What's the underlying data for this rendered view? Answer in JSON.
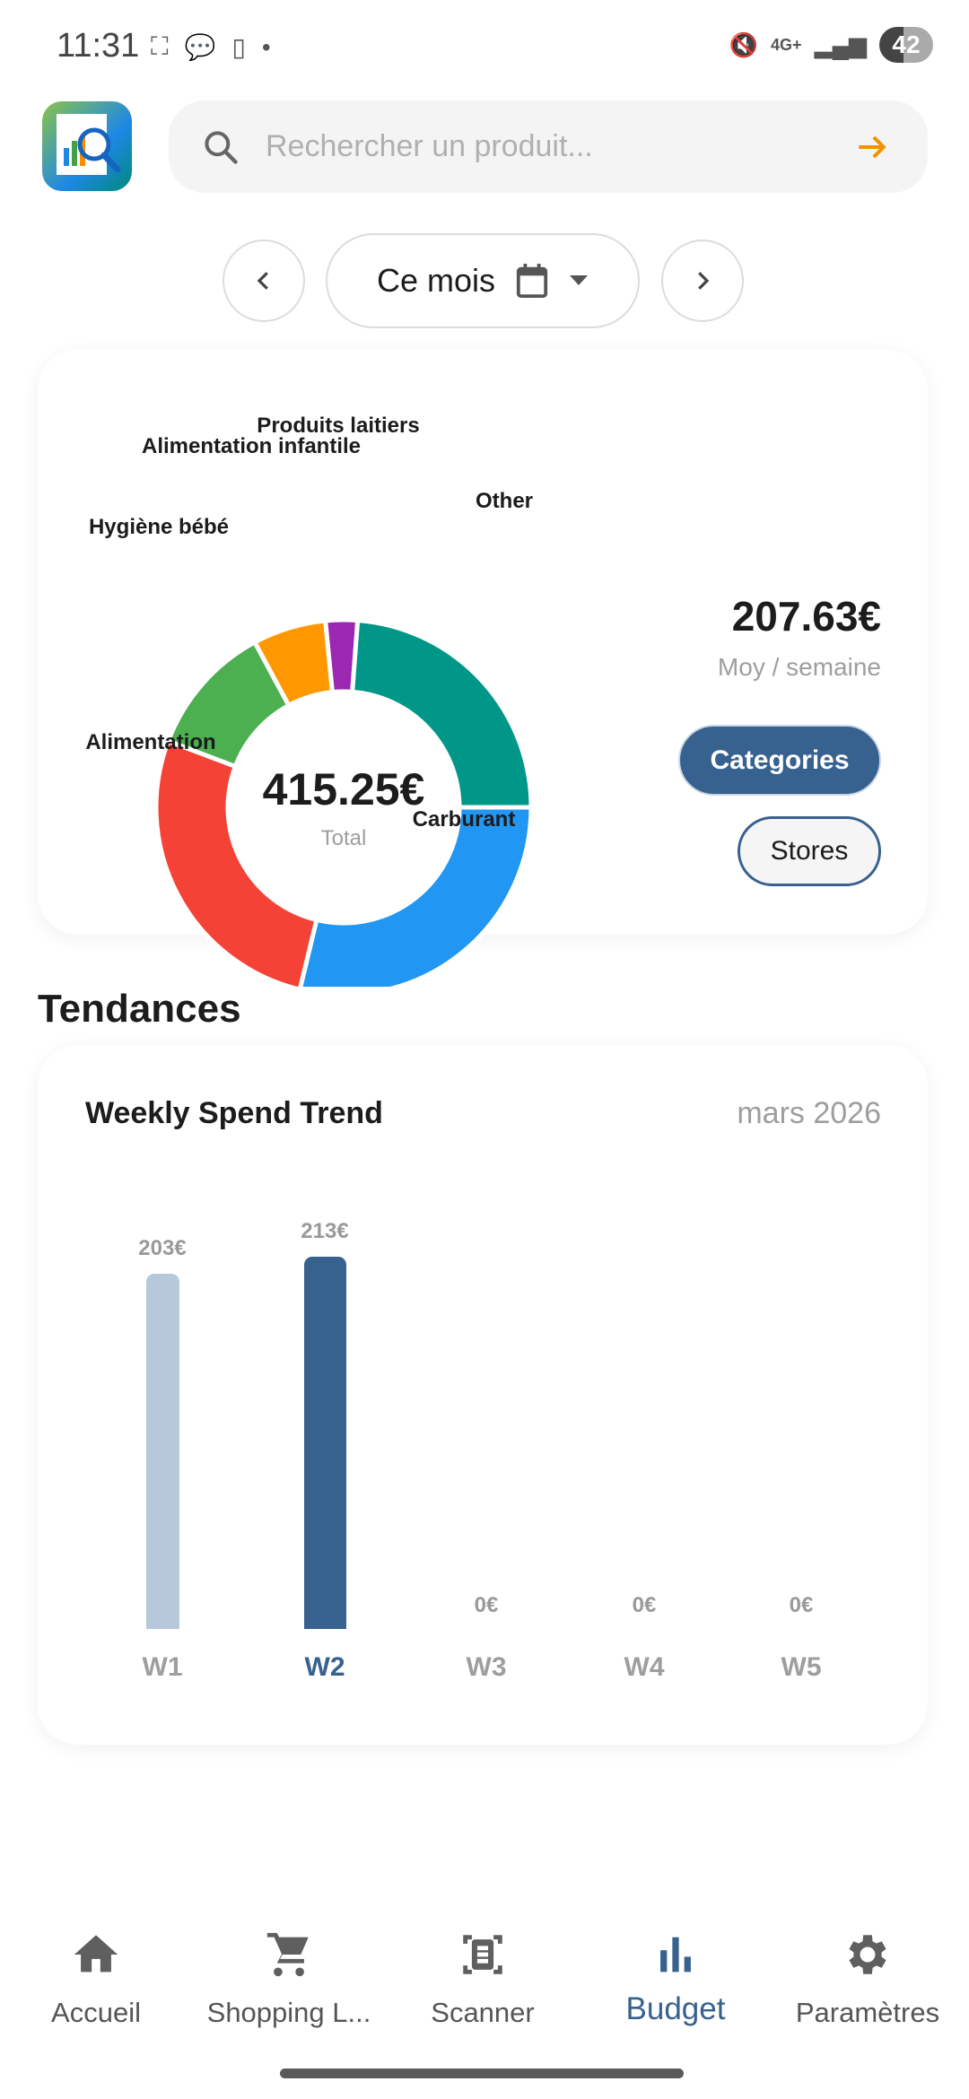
{
  "status_bar": {
    "time": "11:31",
    "network": "4G+",
    "battery": "42"
  },
  "search": {
    "placeholder": "Rechercher un produit...",
    "value": ""
  },
  "period": {
    "label": "Ce mois"
  },
  "summary": {
    "total": "415.25€",
    "total_label": "Total",
    "weekly_avg": "207.63€",
    "weekly_avg_label": "Moy / semaine",
    "toggle_categories": "Categories",
    "toggle_stores": "Stores",
    "active_toggle": "Categories"
  },
  "chart_data": [
    {
      "type": "pie",
      "donut": true,
      "center_text": "415.25€",
      "categories": [
        "Carburant",
        "Alimentation",
        "Hygiène bébé",
        "Alimentation infantile",
        "Produits laitiers",
        "Other"
      ],
      "values": [
        119.4,
        112.1,
        47.3,
        26.2,
        11.4,
        98.85
      ],
      "colors": [
        "#2196f3",
        "#f44336",
        "#4caf50",
        "#ff9800",
        "#9c27b0",
        "#009688"
      ]
    },
    {
      "type": "bar",
      "title": "Weekly Spend Trend",
      "subtitle": "mars 2026",
      "categories": [
        "W1",
        "W2",
        "W3",
        "W4",
        "W5"
      ],
      "values": [
        203,
        213,
        0,
        0,
        0
      ],
      "value_labels": [
        "203€",
        "213€",
        "0€",
        "0€",
        "0€"
      ],
      "highlighted": "W2",
      "colors": {
        "normal": "#b6c8da",
        "highlight": "#37618e"
      }
    }
  ],
  "section_title": "Tendances",
  "bottom_nav": {
    "items": [
      {
        "label": "Accueil",
        "icon": "home-icon"
      },
      {
        "label": "Shopping L...",
        "icon": "cart-icon"
      },
      {
        "label": "Scanner",
        "icon": "scanner-icon"
      },
      {
        "label": "Budget",
        "icon": "bar-chart-icon"
      },
      {
        "label": "Paramètres",
        "icon": "gear-icon"
      }
    ],
    "active": "Budget"
  },
  "colors": {
    "primary": "#37618e",
    "accent": "#f39200"
  }
}
